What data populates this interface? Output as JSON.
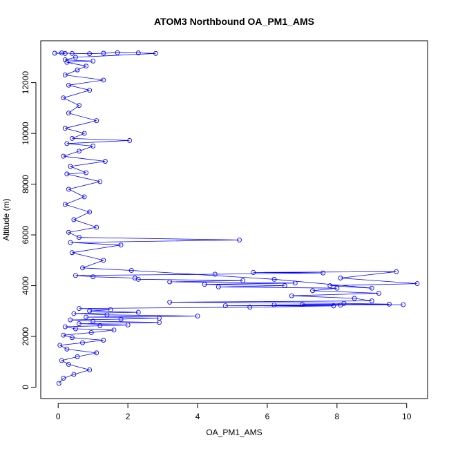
{
  "chart_data": {
    "type": "scatter",
    "title": "ATOM3 Northbound OA_PM1_AMS",
    "xlabel": "OA_PM1_AMS",
    "ylabel": "Altitude (m)",
    "xlim": [
      -0.5,
      10.6
    ],
    "ylim": [
      -450,
      13650
    ],
    "x_ticks": [
      0,
      2,
      4,
      6,
      8,
      10
    ],
    "y_ticks": [
      0,
      2000,
      4000,
      6000,
      8000,
      10000,
      12000
    ],
    "point_style": "open-circle",
    "connected": true,
    "grid": false,
    "colors": {
      "series": "#0000ff",
      "axis": "#000000"
    },
    "series": [
      {
        "x": [
          0.02,
          0.15,
          0.45,
          0.9,
          0.3,
          0.1,
          0.55,
          1.1,
          0.25,
          0.05,
          0.7,
          1.3,
          0.4,
          0.15,
          0.95,
          1.6,
          0.5,
          0.2,
          1.2,
          2.0,
          0.6,
          2.9,
          1.0,
          0.35,
          1.8,
          2.9,
          0.8,
          4.0,
          1.4,
          0.45,
          2.3,
          0.9,
          1.5,
          0.6,
          5.5,
          7.9,
          4.8,
          8.1,
          6.2,
          9.9,
          7.0,
          9.5,
          8.2,
          3.2,
          9.0,
          8.5,
          6.7,
          9.2,
          7.3,
          8.0,
          4.6,
          6.5,
          4.2,
          6.8,
          3.2,
          5.3,
          2.3,
          2.2,
          1.0,
          0.5,
          4.5,
          7.6,
          5.6,
          9.7,
          8.1,
          10.3,
          7.8,
          9.0,
          6.2,
          2.1,
          0.7,
          1.3,
          0.4,
          1.8,
          0.35,
          5.2,
          0.6,
          0.3,
          1.1,
          0.45,
          0.9,
          0.2,
          0.75,
          0.3,
          1.2,
          0.25,
          0.8,
          0.35,
          1.35,
          0.15,
          0.6,
          1.0,
          0.25,
          2.05,
          0.4,
          0.75,
          0.2,
          1.1,
          0.3,
          0.6,
          0.15,
          0.9,
          0.3,
          1.3,
          0.2,
          0.55,
          0.8,
          0.25,
          1.0,
          0.2,
          0.5,
          2.8,
          2.3,
          1.7,
          1.3,
          0.9,
          0.4,
          0.1,
          -0.1,
          0.2
        ],
        "y": [
          150,
          350,
          500,
          680,
          900,
          1050,
          1200,
          1350,
          1500,
          1650,
          1750,
          1850,
          1950,
          2050,
          2150,
          2250,
          2300,
          2380,
          2420,
          2450,
          2500,
          2550,
          2600,
          2650,
          2680,
          2720,
          2760,
          2800,
          2850,
          2900,
          2950,
          3000,
          3050,
          3100,
          3150,
          3200,
          3210,
          3230,
          3240,
          3250,
          3260,
          3270,
          3300,
          3350,
          3400,
          3500,
          3600,
          3700,
          3800,
          3900,
          3950,
          4000,
          4050,
          4100,
          4150,
          4200,
          4250,
          4300,
          4350,
          4400,
          4450,
          4500,
          4520,
          4550,
          4300,
          4080,
          4000,
          3900,
          4250,
          4600,
          4700,
          5000,
          5300,
          5600,
          5700,
          5800,
          5900,
          6100,
          6300,
          6600,
          6900,
          7200,
          7500,
          7800,
          8100,
          8400,
          8450,
          8700,
          8900,
          9100,
          9300,
          9500,
          9600,
          9720,
          9800,
          10000,
          10200,
          10500,
          10800,
          11100,
          11400,
          11700,
          11900,
          12100,
          12300,
          12500,
          12650,
          12800,
          12850,
          12900,
          13000,
          13150,
          13170,
          13180,
          13160,
          13140,
          13150,
          13170,
          13160,
          13150
        ]
      }
    ]
  }
}
